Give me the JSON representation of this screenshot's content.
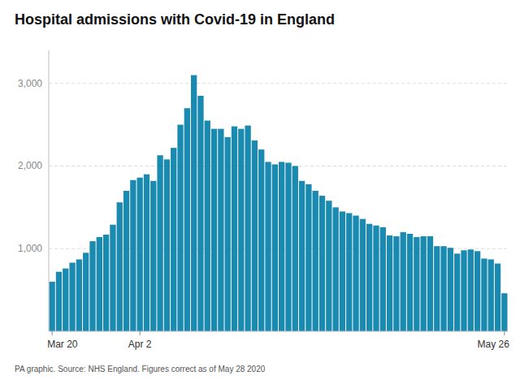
{
  "chart_data": {
    "type": "bar",
    "title": "Hospital admissions with Covid-19 in England",
    "footnote": "PA graphic. Source: NHS England. Figures correct as of May 28 2020",
    "color": "#1b8ab0",
    "ylim": [
      0,
      3400
    ],
    "yticks": [
      {
        "value": 1000,
        "label": "1,000"
      },
      {
        "value": 2000,
        "label": "2,000"
      },
      {
        "value": 3000,
        "label": "3,000"
      }
    ],
    "grid": true,
    "categories": [
      "Mar 20",
      null,
      null,
      null,
      null,
      null,
      null,
      null,
      null,
      null,
      null,
      null,
      null,
      "Apr 2",
      null,
      null,
      null,
      null,
      null,
      null,
      null,
      null,
      null,
      null,
      null,
      null,
      null,
      null,
      null,
      null,
      null,
      null,
      null,
      null,
      null,
      null,
      null,
      null,
      null,
      null,
      null,
      null,
      null,
      null,
      null,
      null,
      null,
      null,
      null,
      null,
      null,
      null,
      null,
      null,
      null,
      null,
      null,
      null,
      null,
      null,
      null,
      null,
      null,
      null,
      null,
      null,
      null,
      "May 26"
    ],
    "values": [
      600,
      720,
      760,
      830,
      870,
      950,
      1090,
      1140,
      1170,
      1290,
      1560,
      1700,
      1830,
      1860,
      1900,
      1820,
      2130,
      2080,
      2220,
      2500,
      2700,
      3100,
      2850,
      2550,
      2450,
      2450,
      2350,
      2480,
      2450,
      2490,
      2310,
      2200,
      2050,
      2020,
      2050,
      2040,
      2000,
      1820,
      1780,
      1700,
      1640,
      1580,
      1500,
      1450,
      1430,
      1400,
      1360,
      1300,
      1280,
      1260,
      1160,
      1150,
      1200,
      1180,
      1140,
      1150,
      1150,
      1030,
      1030,
      1010,
      940,
      980,
      990,
      970,
      880,
      870,
      820,
      460
    ]
  }
}
